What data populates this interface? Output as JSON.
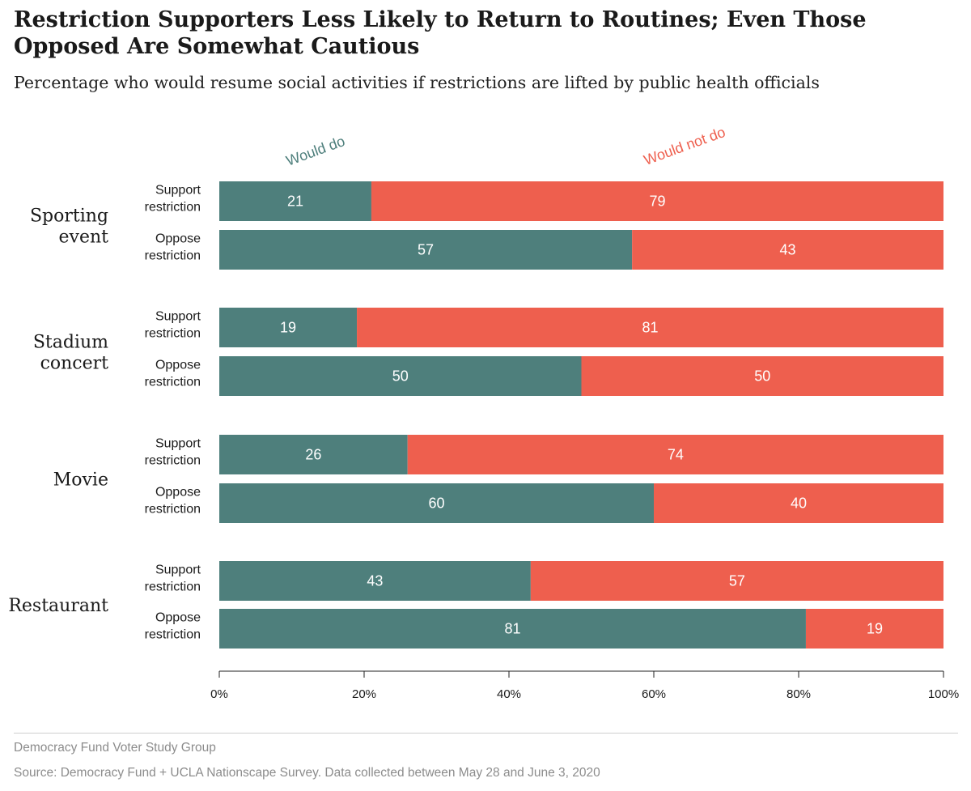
{
  "header": {
    "title": "Restriction Supporters Less Likely to Return to Routines; Even Those Opposed Are Somewhat Cautious",
    "subtitle": "Percentage who would resume social activities if restrictions are lifted by public health officials"
  },
  "footer": {
    "org": "Democracy Fund Voter Study Group",
    "source": "Source: Democracy Fund + UCLA Nationscape Survey. Data collected between May 28 and June 3, 2020"
  },
  "colors": {
    "would_do": "#4e7f7c",
    "would_not_do": "#ee5f4e"
  },
  "chart_data": {
    "type": "bar",
    "orientation": "horizontal",
    "stacked": true,
    "xlim": [
      0,
      100
    ],
    "x_ticks": [
      "0%",
      "20%",
      "40%",
      "60%",
      "80%",
      "100%"
    ],
    "series_labels": [
      "Would do",
      "Would not do"
    ],
    "groups": [
      {
        "label_lines": [
          "Sporting",
          "event"
        ],
        "rows": [
          {
            "label_lines": [
              "Support",
              "restriction"
            ],
            "would_do": 21,
            "would_not_do": 79
          },
          {
            "label_lines": [
              "Oppose",
              "restriction"
            ],
            "would_do": 57,
            "would_not_do": 43
          }
        ]
      },
      {
        "label_lines": [
          "Stadium",
          "concert"
        ],
        "rows": [
          {
            "label_lines": [
              "Support",
              "restriction"
            ],
            "would_do": 19,
            "would_not_do": 81
          },
          {
            "label_lines": [
              "Oppose",
              "restriction"
            ],
            "would_do": 50,
            "would_not_do": 50
          }
        ]
      },
      {
        "label_lines": [
          "Movie"
        ],
        "rows": [
          {
            "label_lines": [
              "Support",
              "restriction"
            ],
            "would_do": 26,
            "would_not_do": 74
          },
          {
            "label_lines": [
              "Oppose",
              "restriction"
            ],
            "would_do": 60,
            "would_not_do": 40
          }
        ]
      },
      {
        "label_lines": [
          "Restaurant"
        ],
        "rows": [
          {
            "label_lines": [
              "Support",
              "restriction"
            ],
            "would_do": 43,
            "would_not_do": 57
          },
          {
            "label_lines": [
              "Oppose",
              "restriction"
            ],
            "would_do": 81,
            "would_not_do": 19
          }
        ]
      }
    ]
  }
}
